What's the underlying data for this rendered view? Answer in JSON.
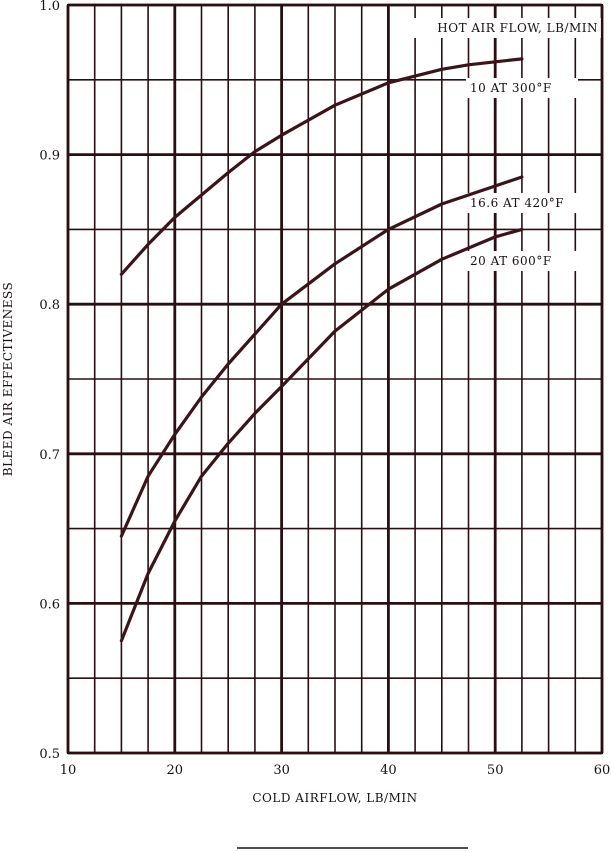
{
  "chart_data": {
    "type": "line",
    "title": "",
    "xlabel": "COLD AIRFLOW, LB/MIN",
    "ylabel": "BLEED AIR EFFECTIVENESS",
    "xlim": [
      10,
      60
    ],
    "ylim": [
      0.5,
      1.0
    ],
    "x_ticks": [
      "10",
      "20",
      "30",
      "40",
      "50",
      "60"
    ],
    "y_ticks": [
      "0.5",
      "0.6",
      "0.7",
      "0.8",
      "0.9",
      "1.0"
    ],
    "grid": true,
    "legend_title": "HOT AIR FLOW, LB/MIN",
    "series": [
      {
        "name": "10 AT 300°F",
        "x": [
          15,
          17.5,
          20,
          22.5,
          25,
          27.5,
          30,
          35,
          40,
          45,
          47.5,
          50,
          52.5
        ],
        "y": [
          0.82,
          0.84,
          0.858,
          0.873,
          0.888,
          0.902,
          0.913,
          0.933,
          0.948,
          0.957,
          0.96,
          0.962,
          0.964
        ]
      },
      {
        "name": "16.6 AT 420°F",
        "x": [
          15,
          17.5,
          20,
          22.5,
          25,
          27.5,
          30,
          35,
          40,
          45,
          50,
          52.5
        ],
        "y": [
          0.645,
          0.685,
          0.713,
          0.738,
          0.76,
          0.78,
          0.8,
          0.827,
          0.85,
          0.867,
          0.879,
          0.885
        ]
      },
      {
        "name": "20 AT 600°F",
        "x": [
          15,
          17.5,
          20,
          22.5,
          25,
          27.5,
          30,
          35,
          40,
          45,
          50,
          52.5
        ],
        "y": [
          0.575,
          0.62,
          0.655,
          0.685,
          0.707,
          0.727,
          0.745,
          0.782,
          0.81,
          0.83,
          0.845,
          0.85
        ]
      }
    ]
  }
}
